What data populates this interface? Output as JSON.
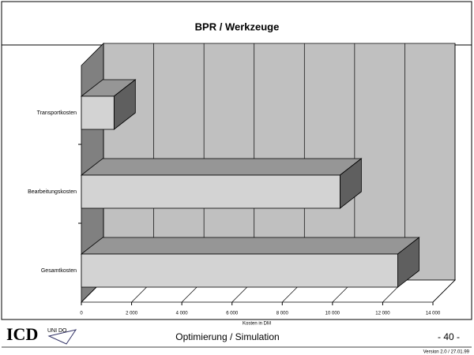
{
  "chart_data": {
    "type": "bar3d_horizontal",
    "title": "BPR / Werkzeuge",
    "categories": [
      "Transportkosten",
      "Bearbeitungskosten",
      "Gesamtkosten"
    ],
    "values": [
      1300,
      10300,
      12600
    ],
    "color": "#d3d3d3",
    "xlabel": "Kosten in DM",
    "xlim": [
      0,
      14000
    ],
    "xticks": [
      0,
      {
        "value": 2000,
        "label": "2 000"
      },
      {
        "value": 4000,
        "label": "4 000"
      },
      {
        "value": 6000,
        "label": "6 000"
      },
      {
        "value": 8000,
        "label": "8 000"
      },
      {
        "value": 10000,
        "label": "10 000"
      },
      {
        "value": 12000,
        "label": "12 000"
      },
      {
        "value": 14000,
        "label": "14 000"
      }
    ],
    "grid": true
  },
  "footer": {
    "logo": "ICD",
    "logo_small": "UNI DO",
    "title": "Optimierung / Simulation",
    "page": "- 40 -",
    "version": "Version 2.0 / 27.01.99"
  }
}
